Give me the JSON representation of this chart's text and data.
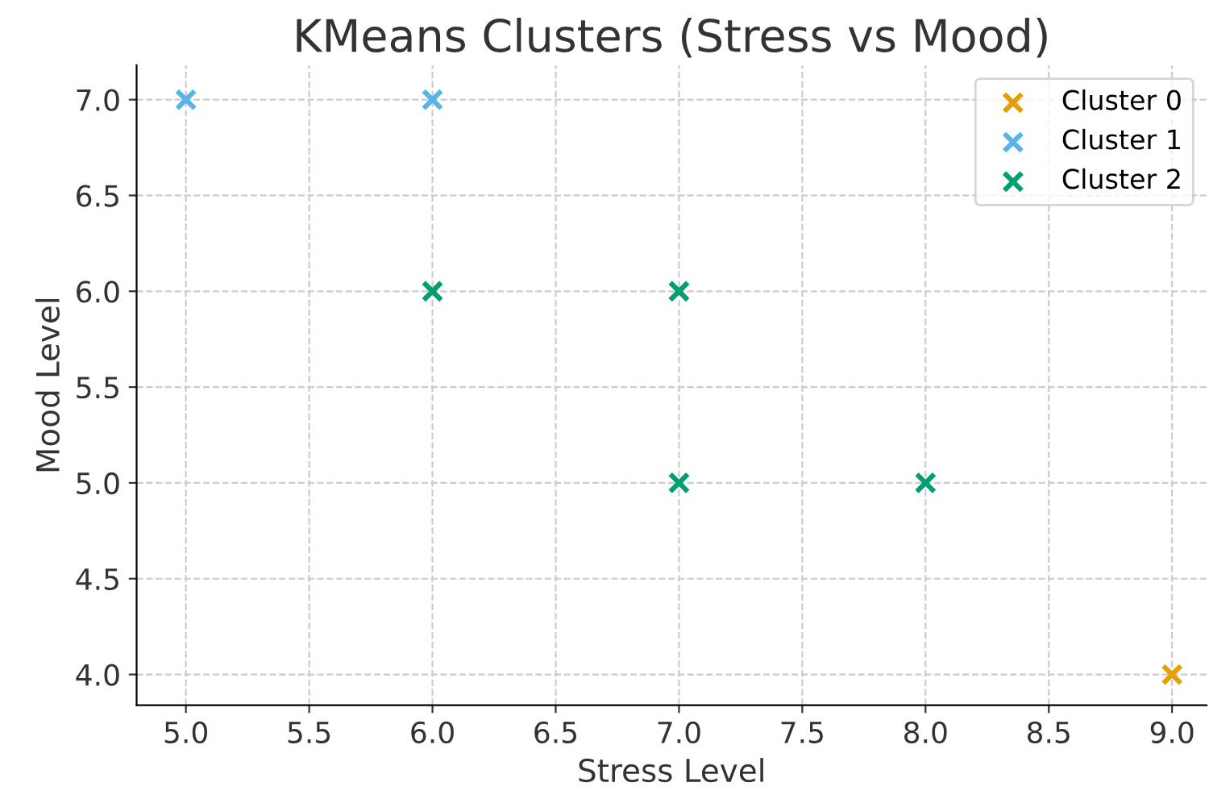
{
  "chart_data": {
    "type": "scatter",
    "title": "KMeans Clusters (Stress vs Mood)",
    "xlabel": "Stress Level",
    "ylabel": "Mood Level",
    "series": [
      {
        "name": "Cluster 0",
        "color": "#e69f00",
        "x": [
          9
        ],
        "values": [
          4
        ]
      },
      {
        "name": "Cluster 1",
        "color": "#56b4e9",
        "x": [
          5,
          6
        ],
        "values": [
          7,
          7
        ]
      },
      {
        "name": "Cluster 2",
        "color": "#009e73",
        "x": [
          6,
          7,
          7,
          8
        ],
        "values": [
          6,
          6,
          5,
          5
        ]
      }
    ],
    "xlim": [
      4.8,
      9.14
    ],
    "ylim": [
      3.84,
      7.18
    ],
    "xticks": [
      {
        "value": 5,
        "label": "5.0"
      },
      {
        "value": 5.5,
        "label": "5.5"
      },
      {
        "value": 6,
        "label": "6.0"
      },
      {
        "value": 6.5,
        "label": "6.5"
      },
      {
        "value": 7,
        "label": "7.0"
      },
      {
        "value": 7.5,
        "label": "7.5"
      },
      {
        "value": 8,
        "label": "8.0"
      },
      {
        "value": 8.5,
        "label": "8.5"
      },
      {
        "value": 9,
        "label": "9.0"
      }
    ],
    "yticks": [
      {
        "value": 4,
        "label": "4.0"
      },
      {
        "value": 4.5,
        "label": "4.5"
      },
      {
        "value": 5,
        "label": "5.0"
      },
      {
        "value": 5.5,
        "label": "5.5"
      },
      {
        "value": 6,
        "label": "6.0"
      },
      {
        "value": 6.5,
        "label": "6.5"
      },
      {
        "value": 7,
        "label": "7.0"
      }
    ],
    "grid": true,
    "legend": "top right",
    "marker": "cross"
  }
}
